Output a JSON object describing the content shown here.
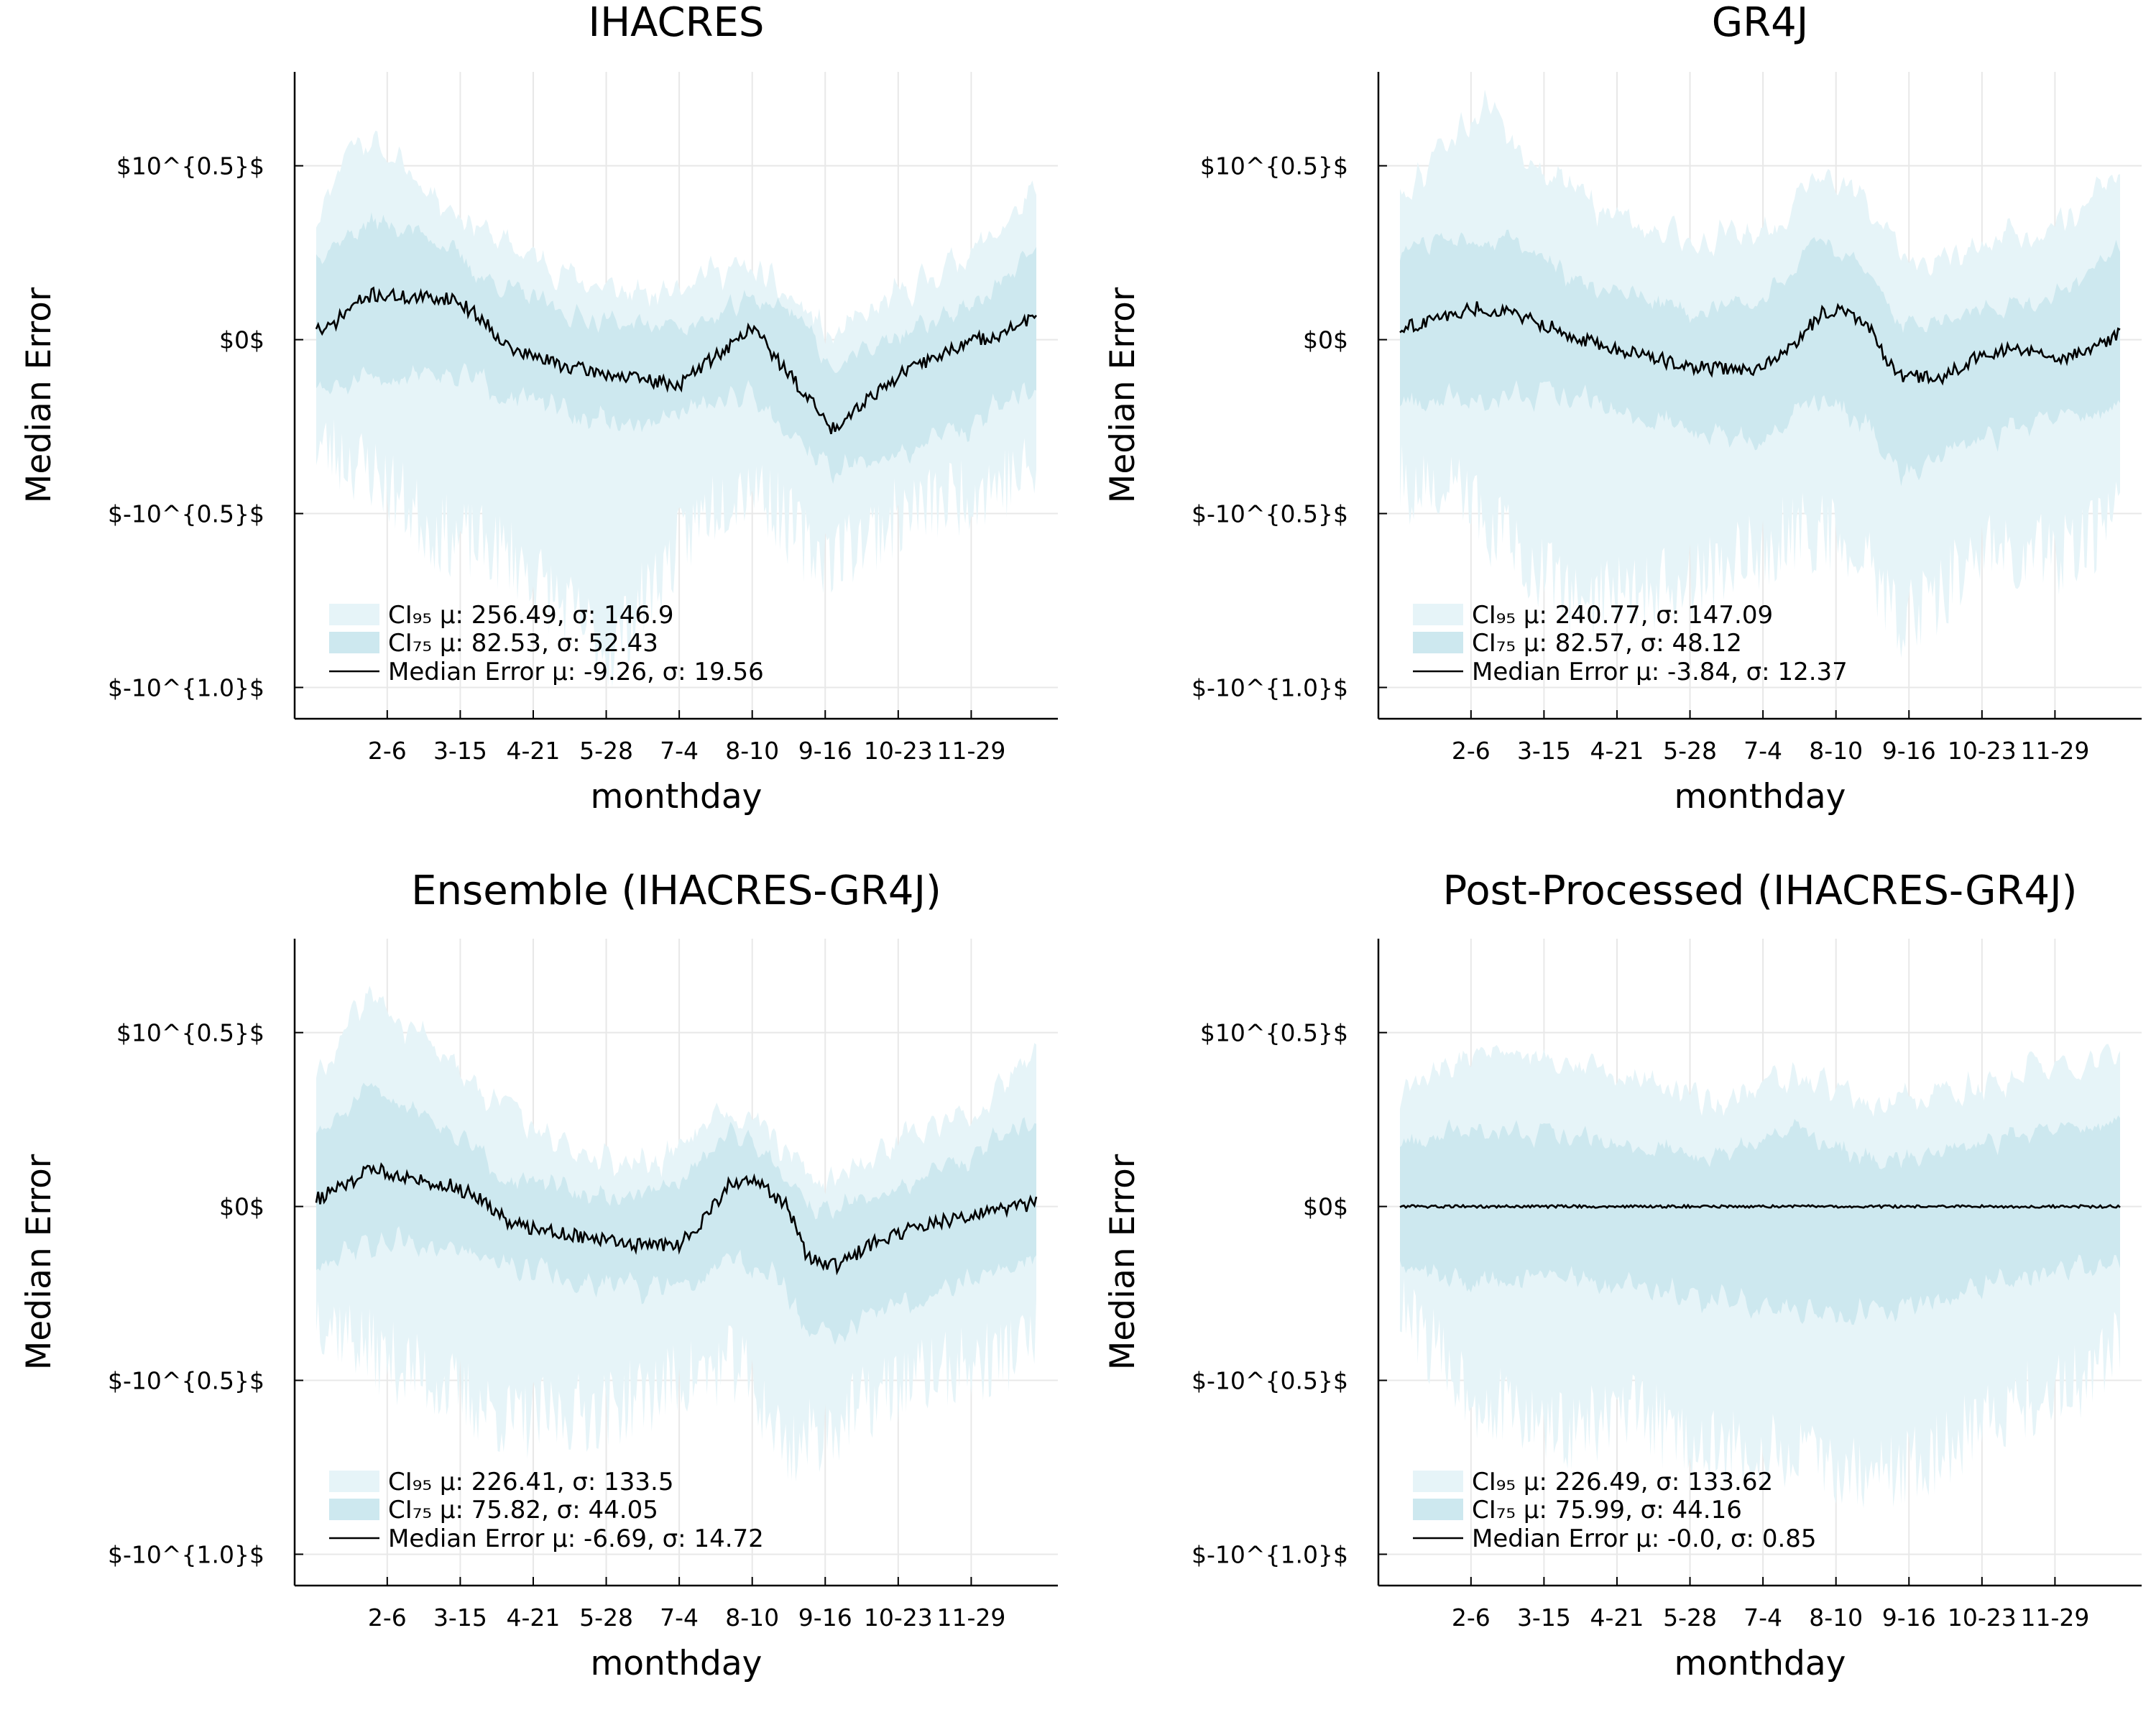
{
  "colors": {
    "ci95": "#e6f4f8",
    "ci75": "#cde8ef",
    "median": "#000000",
    "grid": "#e8e8e8",
    "axis": "#000000"
  },
  "shared": {
    "ylabel": "Median Error",
    "xlabel": "monthday",
    "x_ticks": [
      "2-6",
      "3-15",
      "4-21",
      "5-28",
      "7-4",
      "8-10",
      "9-16",
      "10-23",
      "11-29"
    ],
    "x_tick_days": [
      37,
      74,
      111,
      148,
      185,
      222,
      259,
      296,
      333
    ],
    "x_range": [
      1,
      366
    ],
    "y_ticks": [
      "$10^{0.5}$",
      "$0$",
      "$-10^{0.5}$",
      "$-10^{1.0}$"
    ],
    "y_tick_values": [
      0.5,
      0,
      -0.5,
      -1.0
    ],
    "y_range": [
      -1.09,
      0.77
    ]
  },
  "chart_data": [
    {
      "type": "area",
      "title": "IHACRES",
      "legend": {
        "ci95": "CI₉₅ μ: 256.49, σ: 146.9",
        "ci75": "CI₇₅ μ: 82.53, σ: 52.43",
        "median": "Median Error μ: -9.26, σ: 19.56"
      },
      "median_anchors": [
        [
          1,
          0.04
        ],
        [
          5,
          0.02
        ],
        [
          20,
          0.1
        ],
        [
          30,
          0.13
        ],
        [
          50,
          0.12
        ],
        [
          70,
          0.12
        ],
        [
          85,
          0.06
        ],
        [
          100,
          -0.03
        ],
        [
          130,
          -0.08
        ],
        [
          160,
          -0.11
        ],
        [
          185,
          -0.13
        ],
        [
          200,
          -0.06
        ],
        [
          215,
          0.0
        ],
        [
          222,
          0.04
        ],
        [
          235,
          -0.06
        ],
        [
          255,
          -0.2
        ],
        [
          262,
          -0.26
        ],
        [
          280,
          -0.17
        ],
        [
          300,
          -0.09
        ],
        [
          330,
          -0.01
        ],
        [
          350,
          0.02
        ],
        [
          366,
          0.07
        ]
      ],
      "ci75_upper_anchors": [
        [
          1,
          0.25
        ],
        [
          30,
          0.34
        ],
        [
          60,
          0.3
        ],
        [
          85,
          0.18
        ],
        [
          130,
          0.07
        ],
        [
          170,
          0.04
        ],
        [
          200,
          0.05
        ],
        [
          222,
          0.12
        ],
        [
          245,
          0.08
        ],
        [
          262,
          -0.08
        ],
        [
          300,
          0.02
        ],
        [
          340,
          0.12
        ],
        [
          366,
          0.26
        ]
      ],
      "ci75_lower_anchors": [
        [
          1,
          -0.15
        ],
        [
          30,
          -0.12
        ],
        [
          60,
          -0.08
        ],
        [
          85,
          -0.12
        ],
        [
          130,
          -0.22
        ],
        [
          170,
          -0.25
        ],
        [
          200,
          -0.18
        ],
        [
          222,
          -0.15
        ],
        [
          245,
          -0.28
        ],
        [
          262,
          -0.38
        ],
        [
          300,
          -0.32
        ],
        [
          340,
          -0.22
        ],
        [
          366,
          -0.12
        ]
      ],
      "ci95_upper_anchors": [
        [
          1,
          0.35
        ],
        [
          18,
          0.57
        ],
        [
          25,
          0.58
        ],
        [
          40,
          0.52
        ],
        [
          70,
          0.38
        ],
        [
          95,
          0.28
        ],
        [
          140,
          0.16
        ],
        [
          170,
          0.12
        ],
        [
          195,
          0.2
        ],
        [
          222,
          0.2
        ],
        [
          250,
          0.08
        ],
        [
          262,
          0.0
        ],
        [
          300,
          0.14
        ],
        [
          340,
          0.28
        ],
        [
          366,
          0.42
        ]
      ],
      "ci95_lower_anchors": [
        [
          1,
          -0.3
        ],
        [
          30,
          -0.38
        ],
        [
          60,
          -0.55
        ],
        [
          100,
          -0.62
        ],
        [
          150,
          -0.9
        ],
        [
          170,
          -0.72
        ],
        [
          200,
          -0.48
        ],
        [
          222,
          -0.4
        ],
        [
          250,
          -0.6
        ],
        [
          262,
          -0.62
        ],
        [
          300,
          -0.5
        ],
        [
          340,
          -0.42
        ],
        [
          366,
          -0.38
        ]
      ]
    },
    {
      "type": "area",
      "title": "GR4J",
      "legend": {
        "ci95": "CI₉₅ μ: 240.77, σ: 147.09",
        "ci75": "CI₇₅ μ: 82.57, σ: 48.12",
        "median": "Median Error μ: -3.84, σ: 12.37"
      },
      "median_anchors": [
        [
          1,
          0.03
        ],
        [
          20,
          0.06
        ],
        [
          40,
          0.09
        ],
        [
          55,
          0.08
        ],
        [
          75,
          0.04
        ],
        [
          100,
          -0.01
        ],
        [
          120,
          -0.04
        ],
        [
          150,
          -0.08
        ],
        [
          180,
          -0.09
        ],
        [
          200,
          -0.02
        ],
        [
          215,
          0.08
        ],
        [
          225,
          0.09
        ],
        [
          240,
          0.03
        ],
        [
          252,
          -0.1
        ],
        [
          275,
          -0.11
        ],
        [
          290,
          -0.06
        ],
        [
          310,
          -0.03
        ],
        [
          340,
          -0.05
        ],
        [
          355,
          -0.02
        ],
        [
          366,
          0.02
        ]
      ],
      "ci75_upper_anchors": [
        [
          1,
          0.25
        ],
        [
          30,
          0.3
        ],
        [
          60,
          0.28
        ],
        [
          100,
          0.14
        ],
        [
          150,
          0.08
        ],
        [
          185,
          0.12
        ],
        [
          215,
          0.28
        ],
        [
          235,
          0.22
        ],
        [
          255,
          0.04
        ],
        [
          290,
          0.08
        ],
        [
          330,
          0.12
        ],
        [
          366,
          0.26
        ]
      ],
      "ci75_lower_anchors": [
        [
          1,
          -0.18
        ],
        [
          30,
          -0.16
        ],
        [
          60,
          -0.15
        ],
        [
          100,
          -0.18
        ],
        [
          150,
          -0.26
        ],
        [
          185,
          -0.3
        ],
        [
          215,
          -0.16
        ],
        [
          240,
          -0.25
        ],
        [
          255,
          -0.38
        ],
        [
          290,
          -0.3
        ],
        [
          330,
          -0.24
        ],
        [
          366,
          -0.2
        ]
      ],
      "ci95_upper_anchors": [
        [
          1,
          0.42
        ],
        [
          30,
          0.6
        ],
        [
          45,
          0.68
        ],
        [
          60,
          0.55
        ],
        [
          100,
          0.38
        ],
        [
          150,
          0.28
        ],
        [
          190,
          0.32
        ],
        [
          215,
          0.5
        ],
        [
          240,
          0.38
        ],
        [
          260,
          0.2
        ],
        [
          300,
          0.26
        ],
        [
          340,
          0.36
        ],
        [
          366,
          0.5
        ]
      ],
      "ci95_lower_anchors": [
        [
          1,
          -0.42
        ],
        [
          30,
          -0.45
        ],
        [
          60,
          -0.6
        ],
        [
          90,
          -0.75
        ],
        [
          150,
          -0.7
        ],
        [
          200,
          -0.55
        ],
        [
          230,
          -0.58
        ],
        [
          255,
          -0.82
        ],
        [
          300,
          -0.6
        ],
        [
          340,
          -0.62
        ],
        [
          366,
          -0.5
        ]
      ]
    },
    {
      "type": "area",
      "title": "Ensemble (IHACRES-GR4J)",
      "legend": {
        "ci95": "CI₉₅ μ: 226.41, σ: 133.5",
        "ci75": "CI₇₅ μ: 75.82, σ: 44.05",
        "median": "Median Error μ: -6.69, σ: 14.72"
      },
      "median_anchors": [
        [
          1,
          0.02
        ],
        [
          15,
          0.06
        ],
        [
          30,
          0.11
        ],
        [
          50,
          0.08
        ],
        [
          70,
          0.06
        ],
        [
          85,
          0.02
        ],
        [
          100,
          -0.05
        ],
        [
          130,
          -0.08
        ],
        [
          160,
          -0.11
        ],
        [
          185,
          -0.11
        ],
        [
          200,
          -0.02
        ],
        [
          210,
          0.06
        ],
        [
          225,
          0.07
        ],
        [
          240,
          0.0
        ],
        [
          250,
          -0.15
        ],
        [
          265,
          -0.17
        ],
        [
          285,
          -0.1
        ],
        [
          310,
          -0.05
        ],
        [
          340,
          -0.02
        ],
        [
          366,
          0.01
        ]
      ],
      "ci75_upper_anchors": [
        [
          1,
          0.2
        ],
        [
          30,
          0.34
        ],
        [
          60,
          0.26
        ],
        [
          100,
          0.08
        ],
        [
          150,
          0.02
        ],
        [
          185,
          0.06
        ],
        [
          210,
          0.22
        ],
        [
          230,
          0.16
        ],
        [
          255,
          -0.02
        ],
        [
          290,
          0.04
        ],
        [
          330,
          0.14
        ],
        [
          366,
          0.26
        ]
      ],
      "ci75_lower_anchors": [
        [
          1,
          -0.15
        ],
        [
          30,
          -0.12
        ],
        [
          60,
          -0.1
        ],
        [
          100,
          -0.18
        ],
        [
          150,
          -0.22
        ],
        [
          185,
          -0.25
        ],
        [
          210,
          -0.15
        ],
        [
          235,
          -0.22
        ],
        [
          255,
          -0.38
        ],
        [
          290,
          -0.3
        ],
        [
          330,
          -0.2
        ],
        [
          366,
          -0.14
        ]
      ],
      "ci95_upper_anchors": [
        [
          1,
          0.38
        ],
        [
          20,
          0.55
        ],
        [
          30,
          0.6
        ],
        [
          50,
          0.5
        ],
        [
          80,
          0.36
        ],
        [
          110,
          0.22
        ],
        [
          150,
          0.12
        ],
        [
          185,
          0.16
        ],
        [
          205,
          0.3
        ],
        [
          230,
          0.22
        ],
        [
          255,
          0.06
        ],
        [
          300,
          0.2
        ],
        [
          340,
          0.3
        ],
        [
          366,
          0.44
        ]
      ],
      "ci95_lower_anchors": [
        [
          1,
          -0.3
        ],
        [
          30,
          -0.42
        ],
        [
          60,
          -0.5
        ],
        [
          100,
          -0.62
        ],
        [
          150,
          -0.58
        ],
        [
          185,
          -0.5
        ],
        [
          215,
          -0.45
        ],
        [
          240,
          -0.7
        ],
        [
          265,
          -0.62
        ],
        [
          300,
          -0.5
        ],
        [
          340,
          -0.45
        ],
        [
          366,
          -0.38
        ]
      ]
    },
    {
      "type": "area",
      "title": "Post-Processed (IHACRES-GR4J)",
      "legend": {
        "ci95": "CI₉₅ μ: 226.49, σ: 133.62",
        "ci75": "CI₇₅ μ: 75.99, σ: 44.16",
        "median": "Median Error μ: -0.0, σ: 0.85"
      },
      "median_anchors": [
        [
          1,
          0.0
        ],
        [
          100,
          0.0
        ],
        [
          200,
          0.0
        ],
        [
          300,
          0.0
        ],
        [
          366,
          0.0
        ]
      ],
      "ci75_upper_anchors": [
        [
          1,
          0.18
        ],
        [
          40,
          0.24
        ],
        [
          80,
          0.2
        ],
        [
          120,
          0.18
        ],
        [
          160,
          0.14
        ],
        [
          200,
          0.22
        ],
        [
          240,
          0.14
        ],
        [
          280,
          0.16
        ],
        [
          320,
          0.2
        ],
        [
          366,
          0.24
        ]
      ],
      "ci75_lower_anchors": [
        [
          1,
          -0.16
        ],
        [
          40,
          -0.22
        ],
        [
          80,
          -0.2
        ],
        [
          120,
          -0.24
        ],
        [
          160,
          -0.26
        ],
        [
          200,
          -0.3
        ],
        [
          240,
          -0.32
        ],
        [
          280,
          -0.26
        ],
        [
          320,
          -0.2
        ],
        [
          366,
          -0.16
        ]
      ],
      "ci95_upper_anchors": [
        [
          1,
          0.32
        ],
        [
          40,
          0.45
        ],
        [
          80,
          0.42
        ],
        [
          120,
          0.38
        ],
        [
          160,
          0.3
        ],
        [
          200,
          0.38
        ],
        [
          240,
          0.3
        ],
        [
          280,
          0.32
        ],
        [
          320,
          0.38
        ],
        [
          366,
          0.44
        ]
      ],
      "ci95_lower_anchors": [
        [
          1,
          -0.3
        ],
        [
          40,
          -0.55
        ],
        [
          80,
          -0.65
        ],
        [
          120,
          -0.6
        ],
        [
          160,
          -0.7
        ],
        [
          200,
          -0.72
        ],
        [
          240,
          -0.78
        ],
        [
          270,
          -0.72
        ],
        [
          300,
          -0.6
        ],
        [
          340,
          -0.52
        ],
        [
          366,
          -0.4
        ]
      ]
    }
  ]
}
